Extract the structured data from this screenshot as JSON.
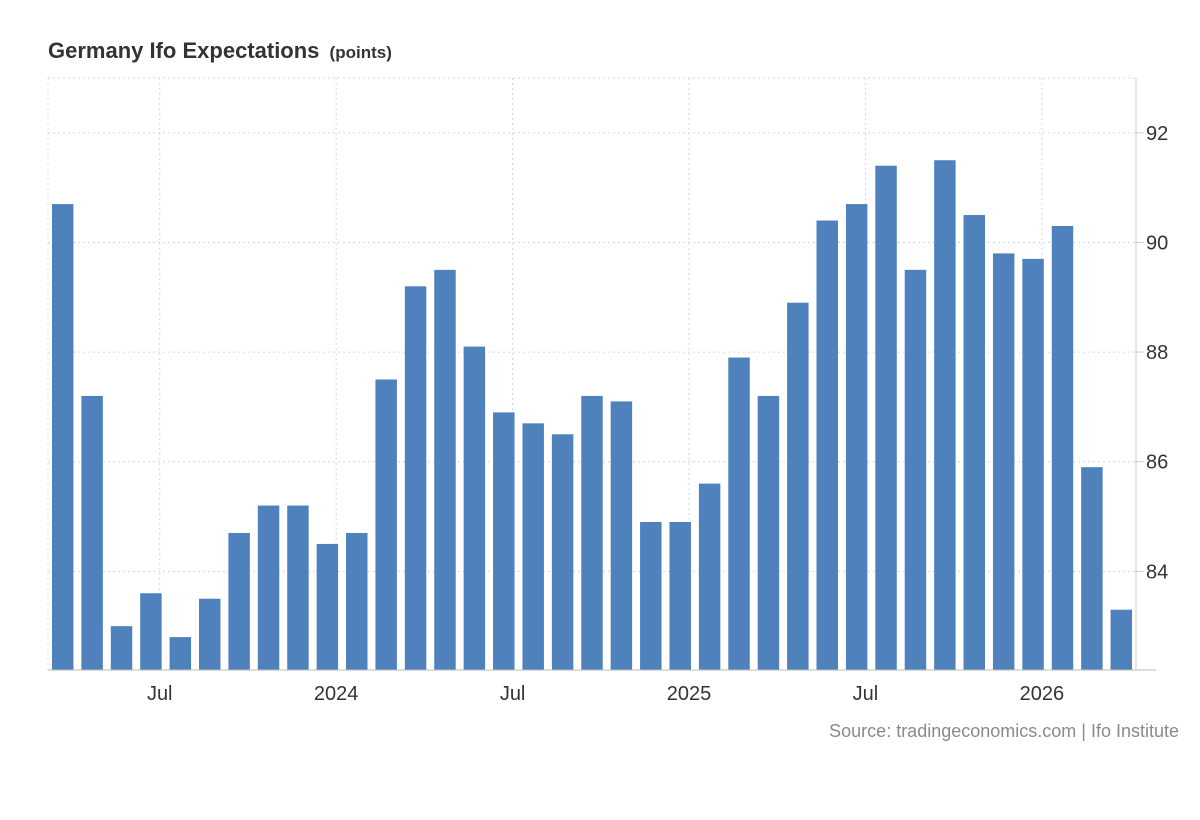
{
  "chart_data": {
    "type": "bar",
    "title": "Germany Ifo Expectations",
    "unit": "(points)",
    "source": "Source: tradingeconomics.com | Ifo Institute",
    "ylim": [
      82.2,
      93
    ],
    "y_ticks": [
      84,
      86,
      88,
      90,
      92
    ],
    "grid": true,
    "x_tick_labels": [
      {
        "label": "Jul",
        "index": 3.3
      },
      {
        "label": "2024",
        "index": 9.3
      },
      {
        "label": "Jul",
        "index": 15.3
      },
      {
        "label": "2025",
        "index": 21.3
      },
      {
        "label": "Jul",
        "index": 27.3
      },
      {
        "label": "2026",
        "index": 33.3
      }
    ],
    "values": [
      90.7,
      87.2,
      83.0,
      83.6,
      82.8,
      83.5,
      84.7,
      85.2,
      85.2,
      84.5,
      84.7,
      87.5,
      89.2,
      89.5,
      88.1,
      86.9,
      86.7,
      86.5,
      87.2,
      87.1,
      84.9,
      84.9,
      85.6,
      87.9,
      87.2,
      88.9,
      90.4,
      90.7,
      91.4,
      89.5,
      91.5,
      90.5,
      89.8,
      89.7,
      90.3,
      85.9,
      83.3
    ],
    "bar_color": "#4f81bd"
  }
}
